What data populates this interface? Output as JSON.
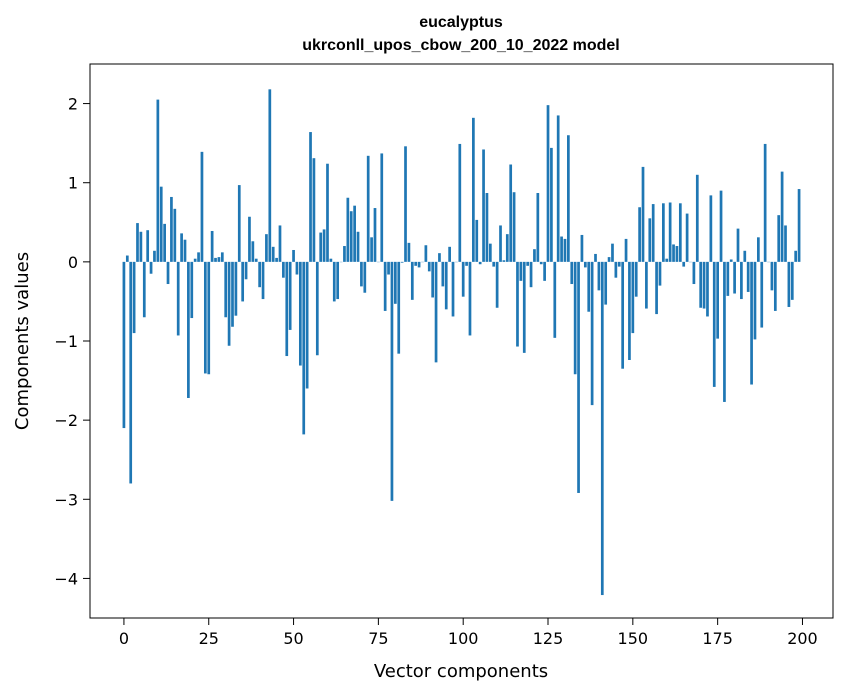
{
  "chart_data": {
    "type": "bar",
    "title": "eucalyptus",
    "subtitle": "ukrconll_upos_cbow_200_10_2022 model",
    "xlabel": "Vector components",
    "ylabel": "Components values",
    "xlim": [
      -10,
      209
    ],
    "ylim": [
      -4.5,
      2.5
    ],
    "x_ticks": [
      0,
      25,
      50,
      75,
      100,
      125,
      150,
      175,
      200
    ],
    "y_ticks": [
      -4,
      -3,
      -2,
      -1,
      0,
      1,
      2
    ],
    "grid": false,
    "bar_color": "#1f77b4",
    "values": [
      -2.1,
      0.08,
      -2.8,
      -0.9,
      0.49,
      0.38,
      -0.7,
      0.4,
      -0.15,
      0.14,
      2.05,
      0.95,
      0.48,
      -0.28,
      0.82,
      0.67,
      -0.93,
      0.36,
      0.28,
      -1.72,
      -0.71,
      0.04,
      0.12,
      1.39,
      -1.41,
      -1.42,
      0.39,
      0.05,
      0.06,
      0.12,
      -0.7,
      -1.06,
      -0.82,
      -0.68,
      0.97,
      -0.5,
      -0.22,
      0.57,
      0.26,
      0.04,
      -0.32,
      -0.47,
      0.35,
      2.18,
      0.19,
      0.05,
      0.46,
      -0.2,
      -1.19,
      -0.86,
      0.15,
      -0.16,
      -1.31,
      -2.18,
      -1.6,
      1.64,
      1.31,
      -1.18,
      0.37,
      0.41,
      1.24,
      0.04,
      -0.5,
      -0.47,
      0.0,
      0.2,
      0.81,
      0.64,
      0.71,
      0.38,
      -0.31,
      -0.39,
      1.34,
      0.31,
      0.68,
      0.0,
      1.37,
      -0.62,
      -0.16,
      -3.02,
      -0.53,
      -1.16,
      -0.01,
      1.46,
      0.24,
      -0.48,
      -0.05,
      -0.07,
      0.0,
      0.21,
      -0.12,
      -0.45,
      -1.27,
      0.11,
      -0.31,
      -0.6,
      0.19,
      -0.69,
      0.0,
      1.49,
      -0.44,
      -0.05,
      -0.93,
      1.82,
      0.53,
      -0.03,
      1.42,
      0.87,
      0.23,
      -0.06,
      -0.58,
      0.46,
      0.02,
      0.35,
      1.23,
      0.88,
      -1.07,
      -0.24,
      -1.15,
      -0.05,
      -0.32,
      0.16,
      0.87,
      -0.03,
      -0.24,
      1.98,
      1.44,
      -0.96,
      1.85,
      0.32,
      0.29,
      1.6,
      -0.28,
      -1.42,
      -2.92,
      0.34,
      -0.07,
      -0.63,
      -1.81,
      0.1,
      -0.36,
      -4.21,
      -0.54,
      0.06,
      0.23,
      -0.2,
      -0.06,
      -1.35,
      0.29,
      -1.24,
      -0.9,
      -0.44,
      0.69,
      1.2,
      -0.59,
      0.55,
      0.73,
      -0.66,
      -0.3,
      0.74,
      0.04,
      0.75,
      0.22,
      0.2,
      0.74,
      -0.06,
      0.61,
      0.0,
      -0.28,
      1.1,
      -0.58,
      -0.59,
      -0.69,
      0.84,
      -1.58,
      -0.97,
      0.9,
      -1.77,
      -0.43,
      0.03,
      -0.4,
      0.42,
      -0.47,
      0.14,
      -0.38,
      -1.55,
      -0.98,
      0.31,
      -0.83,
      1.49,
      0.0,
      -0.36,
      -0.62,
      0.59,
      1.14,
      0.46,
      -0.57,
      -0.48,
      0.14,
      0.92
    ]
  }
}
